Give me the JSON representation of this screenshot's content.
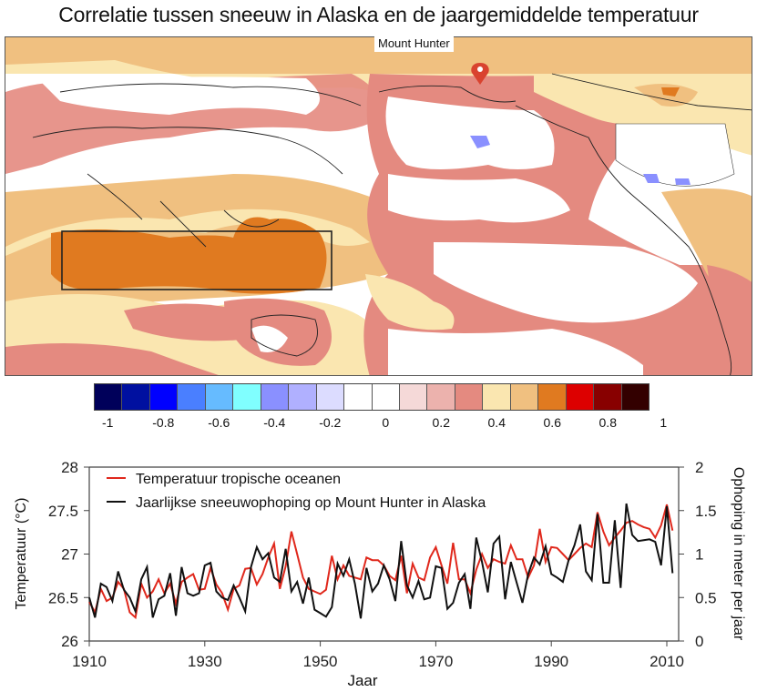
{
  "title": "Correlatie tussen sneeuw in Alaska en de jaargemiddelde temperatuur",
  "map": {
    "marker_label": "Mount Hunter",
    "marker_icon": "map-pin-icon",
    "marker_color": "#d9432f",
    "highlight_region": "Indian Ocean / Maritime Continent box"
  },
  "colorbar": {
    "colors": [
      "#000060",
      "#00005a",
      "#0010a0",
      "#0000ff",
      "#4a7fff",
      "#66bbff",
      "#80ffff",
      "#8a90ff",
      "#b0b0ff",
      "#dcdcff",
      "#ffffff",
      "#ffffff",
      "#f5d9d8",
      "#ecb2ad",
      "#e48a80",
      "#fae6b0",
      "#f0c080",
      "#e07a20",
      "#dd0000",
      "#880000",
      "#330000",
      "#2a0000"
    ],
    "tick_labels": [
      "-1",
      "-0.8",
      "-0.6",
      "-0.4",
      "-0.2",
      "0",
      "0.2",
      "0.4",
      "0.6",
      "0.8",
      "1"
    ]
  },
  "chart_data": {
    "type": "line",
    "xlabel": "Jaar",
    "ylabel": "Temperatuur (°C)",
    "ylabel_right": "Ophoping in meter per jaar",
    "xlim": [
      1910,
      2013
    ],
    "ylim": [
      26,
      28
    ],
    "ylim_right": [
      0,
      2
    ],
    "x_ticks": [
      "1910",
      "1930",
      "1950",
      "1970",
      "1990",
      "2010"
    ],
    "y_ticks": [
      "26",
      "26.5",
      "27",
      "27.5",
      "28"
    ],
    "y_ticks_right": [
      "0",
      "0.5",
      "1",
      "1.5",
      "2"
    ],
    "legend_position": "top-left",
    "grid": false,
    "series": [
      {
        "name": "Temperatuur tropische oceanen",
        "axis": "left",
        "color": "#e0281c",
        "x_start": 1910,
        "values": [
          26.45,
          26.33,
          26.6,
          26.46,
          26.5,
          26.68,
          26.6,
          26.33,
          26.27,
          26.66,
          26.5,
          26.57,
          26.71,
          26.55,
          26.66,
          26.43,
          26.68,
          26.73,
          26.77,
          26.59,
          26.6,
          26.84,
          26.65,
          26.55,
          26.36,
          26.6,
          26.64,
          26.83,
          26.84,
          26.65,
          26.77,
          26.96,
          27.12,
          26.6,
          26.86,
          27.26,
          27.0,
          26.73,
          26.6,
          26.57,
          26.54,
          26.59,
          26.98,
          26.71,
          26.87,
          26.75,
          26.73,
          26.71,
          26.96,
          26.93,
          26.93,
          26.87,
          26.75,
          26.7,
          26.98,
          26.55,
          26.89,
          26.73,
          26.7,
          26.96,
          27.08,
          26.87,
          26.66,
          27.13,
          26.71,
          26.71,
          26.55,
          26.82,
          27.0,
          26.84,
          26.94,
          26.91,
          26.89,
          27.1,
          26.94,
          26.94,
          26.73,
          26.87,
          27.29,
          26.91,
          27.08,
          27.07,
          27.0,
          26.93,
          27.0,
          27.07,
          27.12,
          27.08,
          27.48,
          27.26,
          27.1,
          27.19,
          27.27,
          27.36,
          27.38,
          27.34,
          27.31,
          27.29,
          27.19,
          27.33,
          27.57,
          27.27
        ]
      },
      {
        "name": "Jaarlijkse sneeuwophoping op Mount Hunter in Alaska",
        "axis": "right",
        "color": "#111111",
        "x_start": 1910,
        "values": [
          0.5,
          0.27,
          0.66,
          0.62,
          0.46,
          0.8,
          0.59,
          0.5,
          0.34,
          0.71,
          0.85,
          0.27,
          0.48,
          0.52,
          0.78,
          0.29,
          0.85,
          0.55,
          0.52,
          0.55,
          0.87,
          0.9,
          0.57,
          0.5,
          0.47,
          0.64,
          0.5,
          0.34,
          0.85,
          1.08,
          0.94,
          1.01,
          0.73,
          0.68,
          1.06,
          0.57,
          0.68,
          0.43,
          0.73,
          0.36,
          0.32,
          0.28,
          0.39,
          0.89,
          0.75,
          0.94,
          0.66,
          0.26,
          0.84,
          0.57,
          0.66,
          0.87,
          0.71,
          0.46,
          1.15,
          0.64,
          0.5,
          0.69,
          0.48,
          0.5,
          0.86,
          0.84,
          0.37,
          0.44,
          0.67,
          0.77,
          0.37,
          1.19,
          0.91,
          0.56,
          1.12,
          1.2,
          0.48,
          0.91,
          0.67,
          0.44,
          0.77,
          0.96,
          0.88,
          1.09,
          0.77,
          0.73,
          0.68,
          0.93,
          1.1,
          1.34,
          0.8,
          0.7,
          1.46,
          0.67,
          0.67,
          1.39,
          0.61,
          1.58,
          1.22,
          1.15,
          1.16,
          1.17,
          1.14,
          0.87,
          1.55,
          0.78
        ]
      }
    ]
  }
}
